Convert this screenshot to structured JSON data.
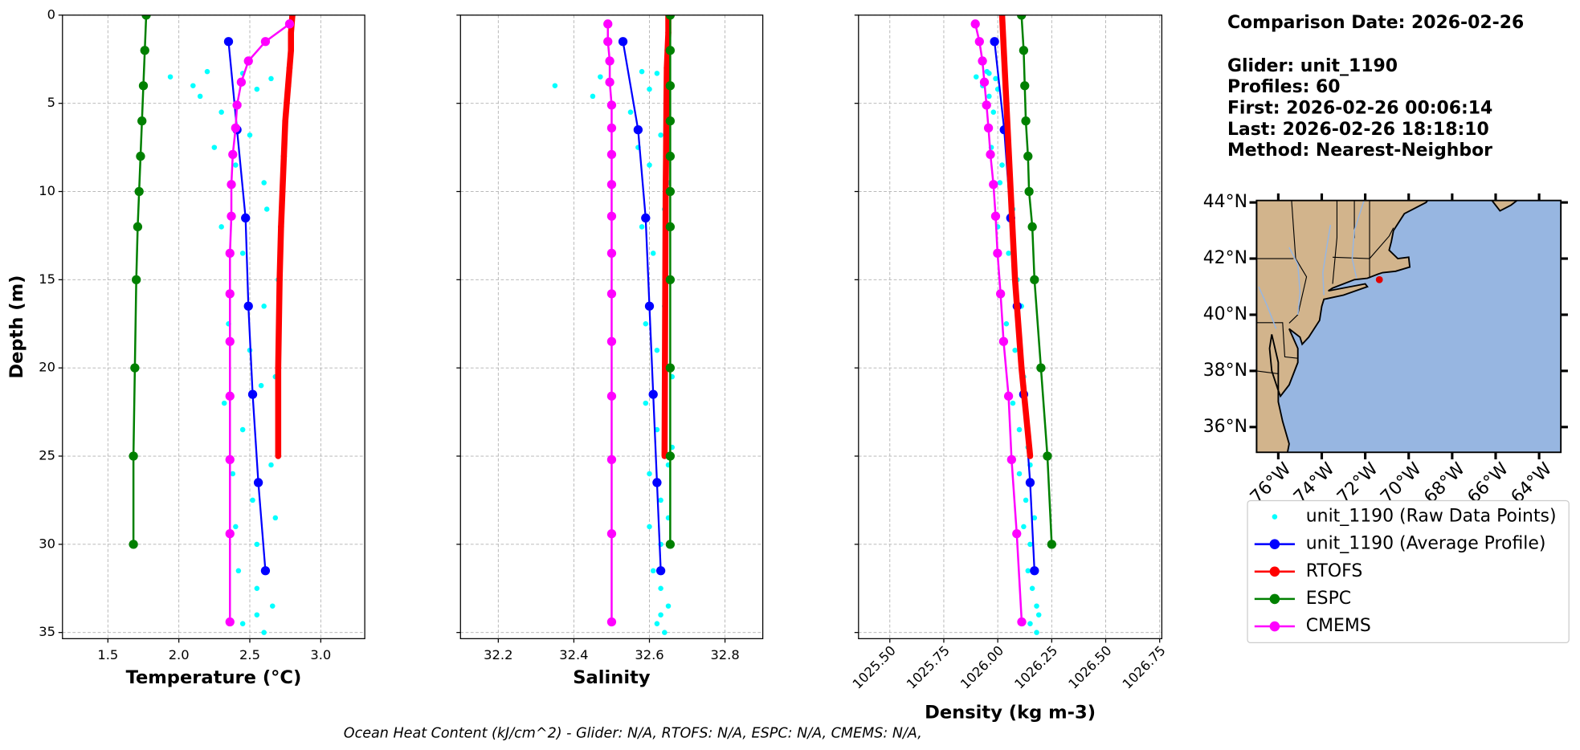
{
  "chart_data": [
    {
      "type": "line",
      "xlabel": "Temperature (°C)",
      "ylabel": "Depth (m)",
      "ytick_labels": true,
      "xlim": [
        1.18,
        3.31
      ],
      "xticks": [
        1.5,
        {
          "value": 2,
          "label": "2.0"
        },
        2.5,
        {
          "value": 3,
          "label": "3.0"
        }
      ],
      "ylim": [
        0,
        35.35
      ],
      "invert_y": true,
      "yticks": [
        0,
        5,
        10,
        15,
        20,
        25,
        30,
        35
      ],
      "grid": true,
      "series": [
        {
          "name": "unit_1190 (Raw Data Points)",
          "color": "#00ffff",
          "style": "dots",
          "x": [
            2.2,
            2.1,
            2.15,
            1.94,
            2.3,
            2.45,
            2.55,
            2.65,
            2.25,
            2.4,
            2.5,
            2.6,
            2.3,
            2.45,
            2.62,
            2.7,
            2.35,
            2.5,
            2.6,
            2.68,
            2.32,
            2.45,
            2.58,
            2.7,
            2.38,
            2.52,
            2.65,
            2.4,
            2.55,
            2.68,
            2.42,
            2.55,
            2.66,
            2.45,
            2.6,
            2.55
          ],
          "y": [
            3.2,
            4.0,
            4.6,
            3.5,
            5.5,
            3.3,
            4.2,
            3.6,
            7.5,
            8.5,
            6.8,
            9.5,
            12,
            13.5,
            11,
            15,
            17.5,
            19,
            16.5,
            20.5,
            22,
            23.5,
            21,
            24.5,
            26,
            27.5,
            25.5,
            29,
            30,
            28.5,
            31.5,
            32.5,
            33.5,
            34.5,
            35,
            34
          ]
        },
        {
          "name": "unit_1190 (Average Profile)",
          "color": "#0000ff",
          "style": "avg",
          "x": [
            2.35,
            2.41,
            2.47,
            2.49,
            2.52,
            2.56,
            2.61
          ],
          "y": [
            1.5,
            6.5,
            11.5,
            16.5,
            21.5,
            26.5,
            31.5
          ]
        },
        {
          "name": "RTOFS",
          "color": "#ff0000",
          "style": "thick",
          "x": [
            2.8,
            2.79,
            2.79,
            2.78,
            2.77,
            2.76,
            2.75,
            2.74,
            2.73,
            2.72,
            2.71,
            2.7,
            2.7
          ],
          "y": [
            0,
            1,
            2,
            3,
            4,
            5,
            6,
            8,
            10,
            12,
            15,
            20,
            25
          ]
        },
        {
          "name": "ESPC",
          "color": "#008000",
          "style": "model",
          "x": [
            1.77,
            1.76,
            1.75,
            1.74,
            1.73,
            1.72,
            1.71,
            1.7,
            1.69,
            1.68,
            1.68
          ],
          "y": [
            0,
            2,
            4,
            6,
            8,
            10,
            12,
            15,
            20,
            25,
            30
          ]
        },
        {
          "name": "CMEMS",
          "color": "#ff00ff",
          "style": "model",
          "x": [
            2.78,
            2.61,
            2.49,
            2.44,
            2.41,
            2.4,
            2.38,
            2.37,
            2.37,
            2.36,
            2.36,
            2.36,
            2.36,
            2.36,
            2.36,
            2.36
          ],
          "y": [
            0.5,
            1.5,
            2.6,
            3.8,
            5.1,
            6.4,
            7.9,
            9.6,
            11.4,
            13.5,
            15.8,
            18.5,
            21.6,
            25.2,
            29.4,
            34.4
          ]
        }
      ]
    },
    {
      "type": "line",
      "xlabel": "Salinity",
      "ytick_labels": false,
      "xlim": [
        32.1,
        32.9
      ],
      "xticks": [
        32.2,
        32.4,
        32.6,
        32.8
      ],
      "ylim": [
        0,
        35.35
      ],
      "invert_y": true,
      "yticks": [
        0,
        5,
        10,
        15,
        20,
        25,
        30,
        35
      ],
      "grid": true,
      "series": [
        {
          "name": "unit_1190 (Raw Data Points)",
          "color": "#00ffff",
          "style": "dots",
          "x": [
            32.58,
            32.35,
            32.45,
            32.47,
            32.55,
            32.62,
            32.6,
            32.65,
            32.57,
            32.6,
            32.63,
            32.65,
            32.58,
            32.61,
            32.64,
            32.66,
            32.59,
            32.62,
            32.64,
            32.66,
            32.59,
            32.62,
            32.64,
            32.66,
            32.6,
            32.63,
            32.65,
            32.6,
            32.63,
            32.65,
            32.61,
            32.63,
            32.65,
            32.62,
            32.64,
            32.63
          ],
          "y": [
            3.2,
            4.0,
            4.6,
            3.5,
            5.5,
            3.3,
            4.2,
            3.6,
            7.5,
            8.5,
            6.8,
            9.5,
            12,
            13.5,
            11,
            15,
            17.5,
            19,
            16.5,
            20.5,
            22,
            23.5,
            21,
            24.5,
            26,
            27.5,
            25.5,
            29,
            30,
            28.5,
            31.5,
            32.5,
            33.5,
            34.5,
            35,
            34
          ]
        },
        {
          "name": "unit_1190 (Average Profile)",
          "color": "#0000ff",
          "style": "avg",
          "x": [
            32.53,
            32.57,
            32.59,
            32.6,
            32.61,
            32.62,
            32.63
          ],
          "y": [
            1.5,
            6.5,
            11.5,
            16.5,
            21.5,
            26.5,
            31.5
          ]
        },
        {
          "name": "RTOFS",
          "color": "#ff0000",
          "style": "thick",
          "x": [
            32.65,
            32.65,
            32.648,
            32.646,
            32.645,
            32.644,
            32.643,
            32.642,
            32.641,
            32.64
          ],
          "y": [
            0,
            1,
            2,
            3,
            5,
            8,
            10,
            15,
            20,
            25
          ]
        },
        {
          "name": "ESPC",
          "color": "#008000",
          "style": "model",
          "x": [
            32.655,
            32.655,
            32.655,
            32.655,
            32.655,
            32.655,
            32.655,
            32.655,
            32.655,
            32.655,
            32.655
          ],
          "y": [
            0,
            2,
            4,
            6,
            8,
            10,
            12,
            15,
            20,
            25,
            30
          ]
        },
        {
          "name": "CMEMS",
          "color": "#ff00ff",
          "style": "model",
          "x": [
            32.49,
            32.49,
            32.495,
            32.495,
            32.5,
            32.5,
            32.5,
            32.5,
            32.5,
            32.5,
            32.5,
            32.5,
            32.5,
            32.5,
            32.5,
            32.5
          ],
          "y": [
            0.5,
            1.5,
            2.6,
            3.8,
            5.1,
            6.4,
            7.9,
            9.6,
            11.4,
            13.5,
            15.8,
            18.5,
            21.6,
            25.2,
            29.4,
            34.4
          ]
        }
      ]
    },
    {
      "type": "line",
      "xlabel": "Density (kg m-3)",
      "ytick_labels": false,
      "xtick_rotation": 45,
      "xlim": [
        1025.355,
        1026.76
      ],
      "xticks": [
        {
          "value": 1025.5,
          "label": "1025.50"
        },
        {
          "value": 1025.75,
          "label": "1025.75"
        },
        {
          "value": 1026,
          "label": "1026.00"
        },
        {
          "value": 1026.25,
          "label": "1026.25"
        },
        {
          "value": 1026.5,
          "label": "1026.50"
        },
        {
          "value": 1026.75,
          "label": "1026.75"
        }
      ],
      "ylim": [
        0,
        35.35
      ],
      "invert_y": true,
      "yticks": [
        0,
        5,
        10,
        15,
        20,
        25,
        30,
        35
      ],
      "grid": true,
      "series": [
        {
          "name": "unit_1190 (Raw Data Points)",
          "color": "#00ffff",
          "style": "dots",
          "x": [
            1025.95,
            1025.93,
            1025.96,
            1025.9,
            1025.98,
            1025.96,
            1026.0,
            1025.99,
            1025.97,
            1026.02,
            1026.04,
            1026.01,
            1026.0,
            1026.05,
            1026.07,
            1026.09,
            1026.04,
            1026.08,
            1026.11,
            1026.12,
            1026.07,
            1026.1,
            1026.12,
            1026.14,
            1026.1,
            1026.13,
            1026.15,
            1026.12,
            1026.15,
            1026.17,
            1026.14,
            1026.16,
            1026.18,
            1026.15,
            1026.18,
            1026.19
          ],
          "y": [
            3.2,
            4.0,
            4.6,
            3.5,
            5.5,
            3.3,
            4.2,
            3.6,
            7.5,
            8.5,
            6.8,
            9.5,
            12,
            13.5,
            11,
            15,
            17.5,
            19,
            16.5,
            20.5,
            22,
            23.5,
            21,
            24.5,
            26,
            27.5,
            25.5,
            29,
            30,
            28.5,
            31.5,
            32.5,
            33.5,
            34.5,
            35,
            34
          ]
        },
        {
          "name": "unit_1190 (Average Profile)",
          "color": "#0000ff",
          "style": "avg",
          "x": [
            1025.985,
            1026.03,
            1026.06,
            1026.09,
            1026.12,
            1026.15,
            1026.17
          ],
          "y": [
            1.5,
            6.5,
            11.5,
            16.5,
            21.5,
            26.5,
            31.5
          ]
        },
        {
          "name": "RTOFS",
          "color": "#ff0000",
          "style": "thick",
          "x": [
            1026.02,
            1026.04,
            1026.06,
            1026.08,
            1026.11,
            1026.15
          ],
          "y": [
            0,
            5,
            10,
            15,
            20,
            25
          ]
        },
        {
          "name": "ESPC",
          "color": "#008000",
          "style": "model",
          "x": [
            1026.11,
            1026.12,
            1026.125,
            1026.13,
            1026.14,
            1026.145,
            1026.16,
            1026.17,
            1026.2,
            1026.23,
            1026.25
          ],
          "y": [
            0,
            2,
            4,
            6,
            8,
            10,
            12,
            15,
            20,
            25,
            30
          ]
        },
        {
          "name": "CMEMS",
          "color": "#ff00ff",
          "style": "model",
          "x": [
            1025.896,
            1025.915,
            1025.929,
            1025.938,
            1025.948,
            1025.957,
            1025.966,
            1025.98,
            1025.99,
            1025.999,
            1026.013,
            1026.027,
            1026.05,
            1026.064,
            1026.088,
            1026.111
          ],
          "y": [
            0.5,
            1.5,
            2.6,
            3.8,
            5.1,
            6.4,
            7.9,
            9.6,
            11.4,
            13.5,
            15.8,
            18.5,
            21.6,
            25.2,
            29.4,
            34.4
          ]
        }
      ]
    }
  ],
  "info": [
    "Comparison Date: 2026-02-26",
    "Glider: unit_1190",
    "Profiles: 60",
    "First: 2026-02-26 00:06:14",
    "Last: 2026-02-26 18:18:10",
    "Method: Nearest-Neighbor"
  ],
  "map": {
    "xlim": [
      -77,
      -63
    ],
    "ylim": [
      35.1,
      44.07
    ],
    "xticks": [
      {
        "value": -76,
        "label": "76°W"
      },
      {
        "value": -74,
        "label": "74°W"
      },
      {
        "value": -72,
        "label": "72°W"
      },
      {
        "value": -70,
        "label": "70°W"
      },
      {
        "value": -68,
        "label": "68°W"
      },
      {
        "value": -66,
        "label": "66°W"
      },
      {
        "value": -64,
        "label": "64°W"
      }
    ],
    "yticks": [
      {
        "value": 36,
        "label": "36°N"
      },
      {
        "value": 38,
        "label": "38°N"
      },
      {
        "value": 40,
        "label": "40°N"
      },
      {
        "value": 42,
        "label": "42°N"
      },
      {
        "value": 44,
        "label": "44°N"
      }
    ],
    "glider": {
      "lon": -71.35,
      "lat": 41.25
    }
  },
  "footer": "Ocean Heat Content (kJ/cm^2) - Glider: N/A,  RTOFS: N/A,  ESPC: N/A,  CMEMS: N/A,"
}
